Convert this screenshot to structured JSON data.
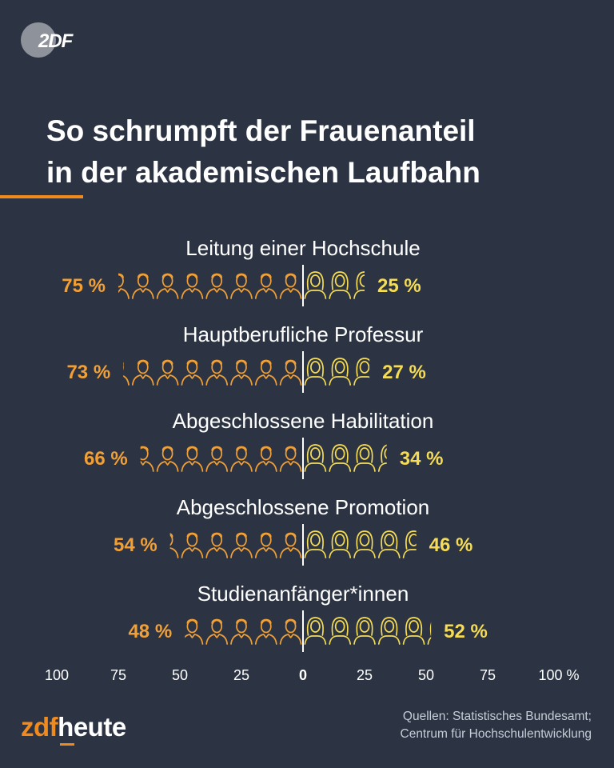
{
  "logo": {
    "text": "2DF"
  },
  "title": {
    "line1": "So schrumpft der Frauenanteil",
    "line2": "in der akademischen Laufbahn"
  },
  "colors": {
    "background": "#2c3444",
    "men": "#f2a035",
    "women": "#f6dc52",
    "accent": "#f08a1c",
    "text": "#ffffff"
  },
  "chart_data": {
    "type": "bar",
    "orientation": "horizontal-diverging",
    "title": "So schrumpft der Frauenanteil in der akademischen Laufbahn",
    "axis": {
      "ticks": [
        {
          "value": -100,
          "label": "100"
        },
        {
          "value": -75,
          "label": "75"
        },
        {
          "value": -50,
          "label": "50"
        },
        {
          "value": -25,
          "label": "25"
        },
        {
          "value": 0,
          "label": "0"
        },
        {
          "value": 25,
          "label": "25"
        },
        {
          "value": 50,
          "label": "50"
        },
        {
          "value": 75,
          "label": "75"
        },
        {
          "value": 100,
          "label": "100 %"
        }
      ],
      "range": [
        -100,
        100
      ]
    },
    "series": [
      {
        "name": "Männer",
        "side": "left",
        "icon": "man-icon"
      },
      {
        "name": "Frauen",
        "side": "right",
        "icon": "woman-icon"
      }
    ],
    "categories": [
      {
        "label": "Leitung einer Hochschule",
        "men": 75,
        "women": 25,
        "men_label": "75 %",
        "women_label": "25 %"
      },
      {
        "label": "Hauptberufliche Professur",
        "men": 73,
        "women": 27,
        "men_label": "73 %",
        "women_label": "27 %"
      },
      {
        "label": "Abgeschlossene Habilitation",
        "men": 66,
        "women": 34,
        "men_label": "66 %",
        "women_label": "34 %"
      },
      {
        "label": "Abgeschlossene Promotion",
        "men": 54,
        "women": 46,
        "men_label": "54 %",
        "women_label": "46 %"
      },
      {
        "label": "Studienanfänger*innen",
        "men": 48,
        "women": 52,
        "men_label": "48 %",
        "women_label": "52 %"
      }
    ]
  },
  "footer": {
    "brand_prefix": "zdf",
    "brand_main": "heute",
    "sources_line1": "Quellen: Statistisches Bundesamt;",
    "sources_line2": "Centrum für Hochschulentwicklung"
  }
}
